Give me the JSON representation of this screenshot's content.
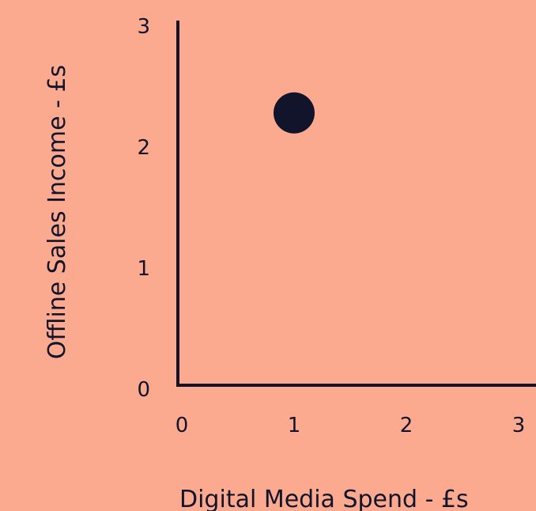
{
  "chart_data": {
    "type": "scatter",
    "title": "",
    "xlabel": "Digital Media Spend - £s",
    "ylabel": "Offline Sales Income - £s",
    "xlim": [
      0,
      3
    ],
    "ylim": [
      0,
      3
    ],
    "x_ticks": [
      "0",
      "1",
      "2",
      "3"
    ],
    "y_ticks": [
      "0",
      "1",
      "2",
      "3"
    ],
    "grid": false,
    "legend": "none",
    "points": [
      {
        "x": 1,
        "y": 2.25
      }
    ],
    "colors": {
      "background": "#FBAA8F",
      "ink": "#12142B",
      "point": "#12142B"
    }
  }
}
